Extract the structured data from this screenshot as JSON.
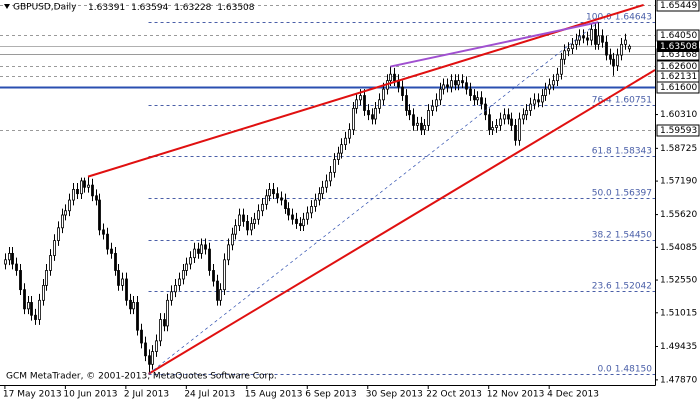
{
  "chart_data": {
    "type": "candlestick",
    "symbol": "GBPUSD,Daily",
    "watermark": "GCM MetaTrader, © 2001-2013, MetaQuotes Software Corp.",
    "xlim": [
      -1.3,
      172
    ],
    "ylim": [
      1.4763,
      1.6568
    ],
    "xticks": [
      {
        "value": 0,
        "label": "17 May 2013"
      },
      {
        "value": 16,
        "label": "10 Jun 2013"
      },
      {
        "value": 32,
        "label": "2 Jul 2013"
      },
      {
        "value": 48,
        "label": "24 Jul 2013"
      },
      {
        "value": 64,
        "label": "15 Aug 2013"
      },
      {
        "value": 80,
        "label": "6 Sep 2013"
      },
      {
        "value": 96,
        "label": "30 Sep 2013"
      },
      {
        "value": 112,
        "label": "22 Oct 2013"
      },
      {
        "value": 128,
        "label": "12 Nov 2013"
      },
      {
        "value": 144,
        "label": "4 Dec 2013"
      }
    ],
    "yticks": [
      {
        "value": 1.6031,
        "label": "1.60310"
      },
      1.58725,
      {
        "value": 1.5719,
        "label": "1.57190"
      },
      {
        "value": 1.5562,
        "label": "1.55620"
      },
      1.54085,
      {
        "value": 1.5255,
        "label": "1.52550"
      },
      1.51015,
      1.49435,
      {
        "value": 1.4787,
        "label": "1.47870"
      }
    ],
    "levels": [
      {
        "value": 1.65449,
        "label": "1.65449",
        "color": "#9a9a9a",
        "style": "dashed"
      },
      {
        "value": 1.6405,
        "label": "1.64050",
        "color": "#9a9a9a",
        "style": "dashed"
      },
      {
        "value": 1.63168,
        "label": "1.63168",
        "color": "#9a9a9a",
        "style": "solid"
      },
      {
        "value": 1.626,
        "label": "1.62600",
        "color": "#9a9a9a",
        "style": "dashed"
      },
      {
        "value": 1.62131,
        "label": "1.62131",
        "color": "#9a9a9a",
        "style": "dashed"
      },
      {
        "value": 1.616,
        "label": "1.61600",
        "color": "#2a4fb0",
        "style": "solid"
      },
      {
        "value": 1.59593,
        "label": "1.59593",
        "color": "#9a9a9a",
        "style": "dashed"
      }
    ],
    "fibonacci": {
      "color": "#4a5fa8",
      "start": 38,
      "levels": [
        {
          "ratio": "100.0",
          "value": 1.64643
        },
        {
          "ratio": "76.4",
          "value": 1.60751
        },
        {
          "ratio": "61.8",
          "value": 1.58343
        },
        {
          "ratio": "50.0",
          "value": 1.56397
        },
        {
          "ratio": "38.2",
          "value": {
            "value": 1.5445,
            "label": "1.54450"
          }
        },
        {
          "ratio": "23.6",
          "value": 1.52042
        },
        {
          "ratio": "0.0",
          "value": {
            "value": 1.4815,
            "label": "1.48150"
          }
        }
      ]
    },
    "trendlines": [
      {
        "from": [
          22,
          1.574
        ],
        "to": [
          169,
          1.6545
        ],
        "color": "#e01010",
        "width": 2,
        "style": "solid"
      },
      {
        "from": [
          38,
          1.4815
        ],
        "to": [
          172,
          1.624
        ],
        "color": "#e01010",
        "width": 2,
        "style": "solid"
      },
      {
        "from": [
          102,
          1.6256
        ],
        "to": [
          157,
          1.6464
        ],
        "color": "#a050d0",
        "width": 2,
        "style": "solid"
      },
      {
        "from": [
          38,
          1.4815
        ],
        "to": [
          157,
          1.6464
        ],
        "color": "#3050b0",
        "width": 0.7,
        "style": "dashed"
      }
    ],
    "open": [
      1.533,
      1.535,
      1.538,
      1.533,
      1.53,
      1.521,
      1.512,
      1.515,
      1.509,
      1.507,
      1.516,
      1.523,
      1.53,
      1.537,
      1.544,
      1.55,
      1.556,
      1.558,
      1.563,
      1.568,
      1.566,
      1.572,
      1.569,
      1.57,
      1.565,
      1.563,
      1.549,
      1.547,
      1.54,
      1.538,
      1.53,
      1.523,
      1.526,
      1.516,
      1.512,
      1.515,
      1.502,
      1.496,
      1.49,
      1.486,
      1.492,
      1.497,
      1.507,
      1.504,
      1.516,
      1.52,
      1.523,
      1.526,
      1.53,
      1.533,
      1.536,
      1.54,
      1.538,
      1.542,
      1.54,
      1.53,
      1.525,
      1.516,
      1.521,
      1.535,
      1.542,
      1.547,
      1.551,
      1.556,
      1.553,
      1.549,
      1.552,
      1.554,
      1.558,
      1.561,
      1.565,
      1.568,
      1.566,
      1.564,
      1.563,
      1.559,
      1.556,
      1.554,
      1.552,
      1.551,
      1.554,
      1.557,
      1.56,
      1.563,
      1.566,
      1.569,
      1.572,
      1.576,
      1.582,
      1.585,
      1.589,
      1.592,
      1.596,
      1.606,
      1.61,
      1.612,
      1.605,
      1.603,
      1.601,
      1.606,
      1.61,
      1.615,
      1.619,
      1.622,
      1.619,
      1.616,
      1.612,
      1.605,
      1.603,
      1.598,
      1.599,
      1.596,
      1.598,
      1.605,
      1.607,
      1.61,
      1.615,
      1.617,
      1.616,
      1.619,
      1.617,
      1.619,
      1.618,
      1.615,
      1.612,
      1.61,
      1.611,
      1.608,
      1.603,
      1.596,
      1.597,
      1.598,
      1.601,
      1.603,
      1.601,
      1.598,
      1.591,
      1.601,
      1.603,
      1.605,
      1.608,
      1.61,
      1.609,
      1.612,
      1.615,
      1.617,
      1.619,
      1.622,
      1.629,
      1.633,
      1.634,
      1.636,
      1.638,
      1.64,
      1.639,
      1.638,
      1.643,
      1.636,
      1.64,
      1.637,
      1.631,
      1.629,
      1.626,
      1.631,
      1.636,
      1.63391
    ],
    "high": [
      1.538,
      1.541,
      1.541,
      1.536,
      1.533,
      1.524,
      1.518,
      1.518,
      1.512,
      1.519,
      1.526,
      1.533,
      1.54,
      1.547,
      1.553,
      1.559,
      1.561,
      1.566,
      1.571,
      1.571,
      1.5735,
      1.5735,
      1.574,
      1.573,
      1.568,
      1.566,
      1.552,
      1.55,
      1.543,
      1.541,
      1.533,
      1.529,
      1.529,
      1.519,
      1.518,
      1.518,
      1.505,
      1.499,
      1.493,
      1.495,
      1.5,
      1.51,
      1.51,
      1.519,
      1.523,
      1.526,
      1.529,
      1.533,
      1.536,
      1.539,
      1.543,
      1.543,
      1.545,
      1.545,
      1.543,
      1.533,
      1.528,
      1.524,
      1.538,
      1.545,
      1.55,
      1.554,
      1.559,
      1.559,
      1.556,
      1.555,
      1.557,
      1.561,
      1.564,
      1.568,
      1.571,
      1.571,
      1.569,
      1.567,
      1.566,
      1.562,
      1.559,
      1.557,
      1.555,
      1.557,
      1.56,
      1.563,
      1.566,
      1.569,
      1.572,
      1.575,
      1.579,
      1.585,
      1.588,
      1.592,
      1.595,
      1.599,
      1.609,
      1.613,
      1.615,
      1.615,
      1.608,
      1.606,
      1.609,
      1.613,
      1.618,
      1.622,
      1.6256,
      1.625,
      1.622,
      1.619,
      1.615,
      1.608,
      1.606,
      1.602,
      1.602,
      1.601,
      1.608,
      1.61,
      1.613,
      1.618,
      1.62,
      1.62,
      1.622,
      1.622,
      1.622,
      1.622,
      1.621,
      1.618,
      1.615,
      1.614,
      1.614,
      1.611,
      1.606,
      1.6,
      1.601,
      1.604,
      1.606,
      1.606,
      1.604,
      1.601,
      1.604,
      1.606,
      1.608,
      1.611,
      1.613,
      1.613,
      1.615,
      1.618,
      1.62,
      1.622,
      1.625,
      1.632,
      1.636,
      1.637,
      1.639,
      1.641,
      1.643,
      1.643,
      1.642,
      1.646,
      1.646,
      1.6464,
      1.643,
      1.64,
      1.634,
      1.632,
      1.634,
      1.639,
      1.641,
      1.63594
    ],
    "low": [
      1.5305,
      1.5325,
      1.5305,
      1.5275,
      1.5185,
      1.5095,
      1.5095,
      1.5065,
      1.5045,
      1.5045,
      1.5135,
      1.5205,
      1.5275,
      1.5345,
      1.5415,
      1.5475,
      1.5535,
      1.5555,
      1.5605,
      1.5635,
      1.5635,
      1.5665,
      1.5665,
      1.5625,
      1.5605,
      1.5465,
      1.5445,
      1.5375,
      1.5355,
      1.5275,
      1.5205,
      1.5205,
      1.5135,
      1.5095,
      1.5095,
      1.4995,
      1.4935,
      1.4875,
      1.4815,
      1.4835,
      1.4895,
      1.4945,
      1.5015,
      1.5015,
      1.5135,
      1.5175,
      1.5205,
      1.5235,
      1.5275,
      1.5305,
      1.5335,
      1.5355,
      1.5355,
      1.5375,
      1.5275,
      1.5225,
      1.5135,
      1.5135,
      1.5185,
      1.5325,
      1.5395,
      1.5445,
      1.5485,
      1.5505,
      1.5465,
      1.5465,
      1.5495,
      1.5515,
      1.5555,
      1.5585,
      1.5625,
      1.5635,
      1.5615,
      1.5605,
      1.5565,
      1.5535,
      1.5515,
      1.5495,
      1.5485,
      1.5485,
      1.5515,
      1.5545,
      1.5575,
      1.5605,
      1.5635,
      1.5665,
      1.5695,
      1.5735,
      1.5795,
      1.5825,
      1.5865,
      1.5895,
      1.5935,
      1.6035,
      1.6075,
      1.6025,
      1.6005,
      1.5985,
      1.5985,
      1.6035,
      1.6075,
      1.6125,
      1.6165,
      1.6165,
      1.6135,
      1.6095,
      1.6025,
      1.6005,
      1.5955,
      1.5955,
      1.5935,
      1.5935,
      1.5955,
      1.6025,
      1.6045,
      1.6075,
      1.6125,
      1.6135,
      1.6135,
      1.6145,
      1.6145,
      1.6155,
      1.6125,
      1.6095,
      1.6075,
      1.6075,
      1.6055,
      1.6005,
      1.5935,
      1.5935,
      1.5945,
      1.5955,
      1.5985,
      1.5985,
      1.5955,
      1.5885,
      1.5885,
      1.5985,
      1.6005,
      1.6025,
      1.6055,
      1.6065,
      1.6065,
      1.6095,
      1.6125,
      1.6145,
      1.6165,
      1.6195,
      1.6265,
      1.6305,
      1.6315,
      1.6335,
      1.6355,
      1.6365,
      1.6355,
      1.6355,
      1.6335,
      1.6335,
      1.6345,
      1.6285,
      1.6265,
      1.6213,
      1.6235,
      1.6285,
      1.6335,
      1.63228
    ],
    "close": [
      1.535,
      1.538,
      1.533,
      1.53,
      1.521,
      1.512,
      1.515,
      1.509,
      1.507,
      1.516,
      1.523,
      1.53,
      1.537,
      1.544,
      1.55,
      1.556,
      1.558,
      1.563,
      1.568,
      1.566,
      1.572,
      1.569,
      1.57,
      1.565,
      1.563,
      1.549,
      1.547,
      1.54,
      1.538,
      1.53,
      1.523,
      1.526,
      1.516,
      1.512,
      1.515,
      1.502,
      1.496,
      1.49,
      1.486,
      1.492,
      1.497,
      1.507,
      1.504,
      1.516,
      1.52,
      1.523,
      1.526,
      1.53,
      1.533,
      1.536,
      1.54,
      1.538,
      1.542,
      1.54,
      1.53,
      1.525,
      1.516,
      1.521,
      1.535,
      1.542,
      1.547,
      1.551,
      1.556,
      1.553,
      1.549,
      1.552,
      1.554,
      1.558,
      1.561,
      1.565,
      1.568,
      1.566,
      1.564,
      1.563,
      1.559,
      1.556,
      1.554,
      1.552,
      1.551,
      1.554,
      1.557,
      1.56,
      1.563,
      1.566,
      1.569,
      1.572,
      1.576,
      1.582,
      1.585,
      1.589,
      1.592,
      1.596,
      1.606,
      1.61,
      1.612,
      1.605,
      1.603,
      1.601,
      1.606,
      1.61,
      1.615,
      1.619,
      1.622,
      1.619,
      1.616,
      1.612,
      1.605,
      1.603,
      1.598,
      1.599,
      1.596,
      1.598,
      1.605,
      1.607,
      1.61,
      1.615,
      1.617,
      1.616,
      1.619,
      1.617,
      1.619,
      1.618,
      1.615,
      1.612,
      1.61,
      1.611,
      1.608,
      1.603,
      1.596,
      1.597,
      1.598,
      1.601,
      1.603,
      1.601,
      1.598,
      1.591,
      1.601,
      1.603,
      1.605,
      1.608,
      1.61,
      1.609,
      1.612,
      1.615,
      1.617,
      1.619,
      1.622,
      1.629,
      1.633,
      1.634,
      1.636,
      1.638,
      1.64,
      1.639,
      1.638,
      1.643,
      1.636,
      1.64,
      1.637,
      1.631,
      1.629,
      1.626,
      1.631,
      1.636,
      1.638,
      1.63508
    ],
    "up_color": "#ffffff",
    "down_color": "#000000",
    "candle_outline": "#000000"
  }
}
